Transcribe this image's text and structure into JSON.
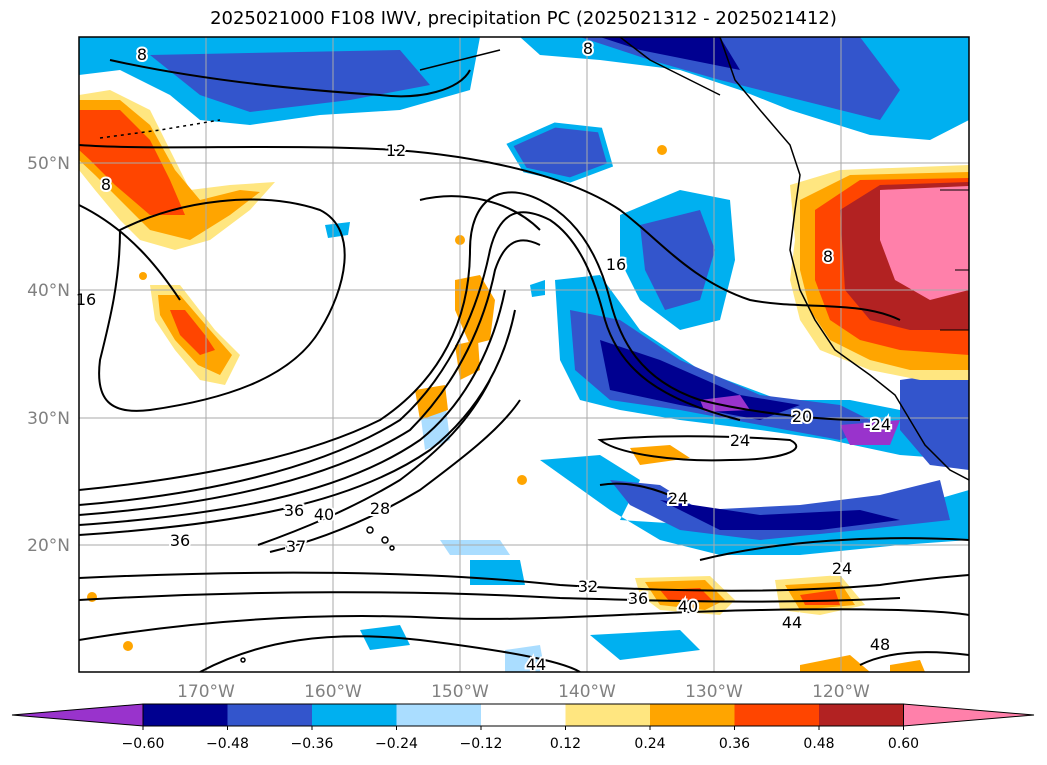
{
  "title": "2025021000 F108 IWV, precipitation PC (2025021312 - 2025021412)",
  "lat_labels": [
    "50°N",
    "40°N",
    "30°N",
    "20°N"
  ],
  "lon_labels": [
    "170°W",
    "160°W",
    "150°W",
    "140°W",
    "130°W",
    "120°W"
  ],
  "contour_labels": [
    "8",
    "8",
    "12",
    "16",
    "16",
    "20",
    "24",
    "24",
    "24",
    "28",
    "32",
    "36",
    "36",
    "36",
    "40",
    "40",
    "44",
    "44",
    "48",
    "37",
    "8",
    "8",
    "24",
    "-24"
  ],
  "colorbar": {
    "ticks": [
      "−0.60",
      "−0.48",
      "−0.36",
      "−0.24",
      "−0.12",
      "0.12",
      "0.24",
      "0.36",
      "0.48",
      "0.60"
    ],
    "colors": [
      "#9933cc",
      "#000090",
      "#3355cc",
      "#00b0f0",
      "#aaddff",
      "#ffffff",
      "#ffe680",
      "#ffa500",
      "#ff4500",
      "#b22222",
      "#ff80aa"
    ]
  }
}
